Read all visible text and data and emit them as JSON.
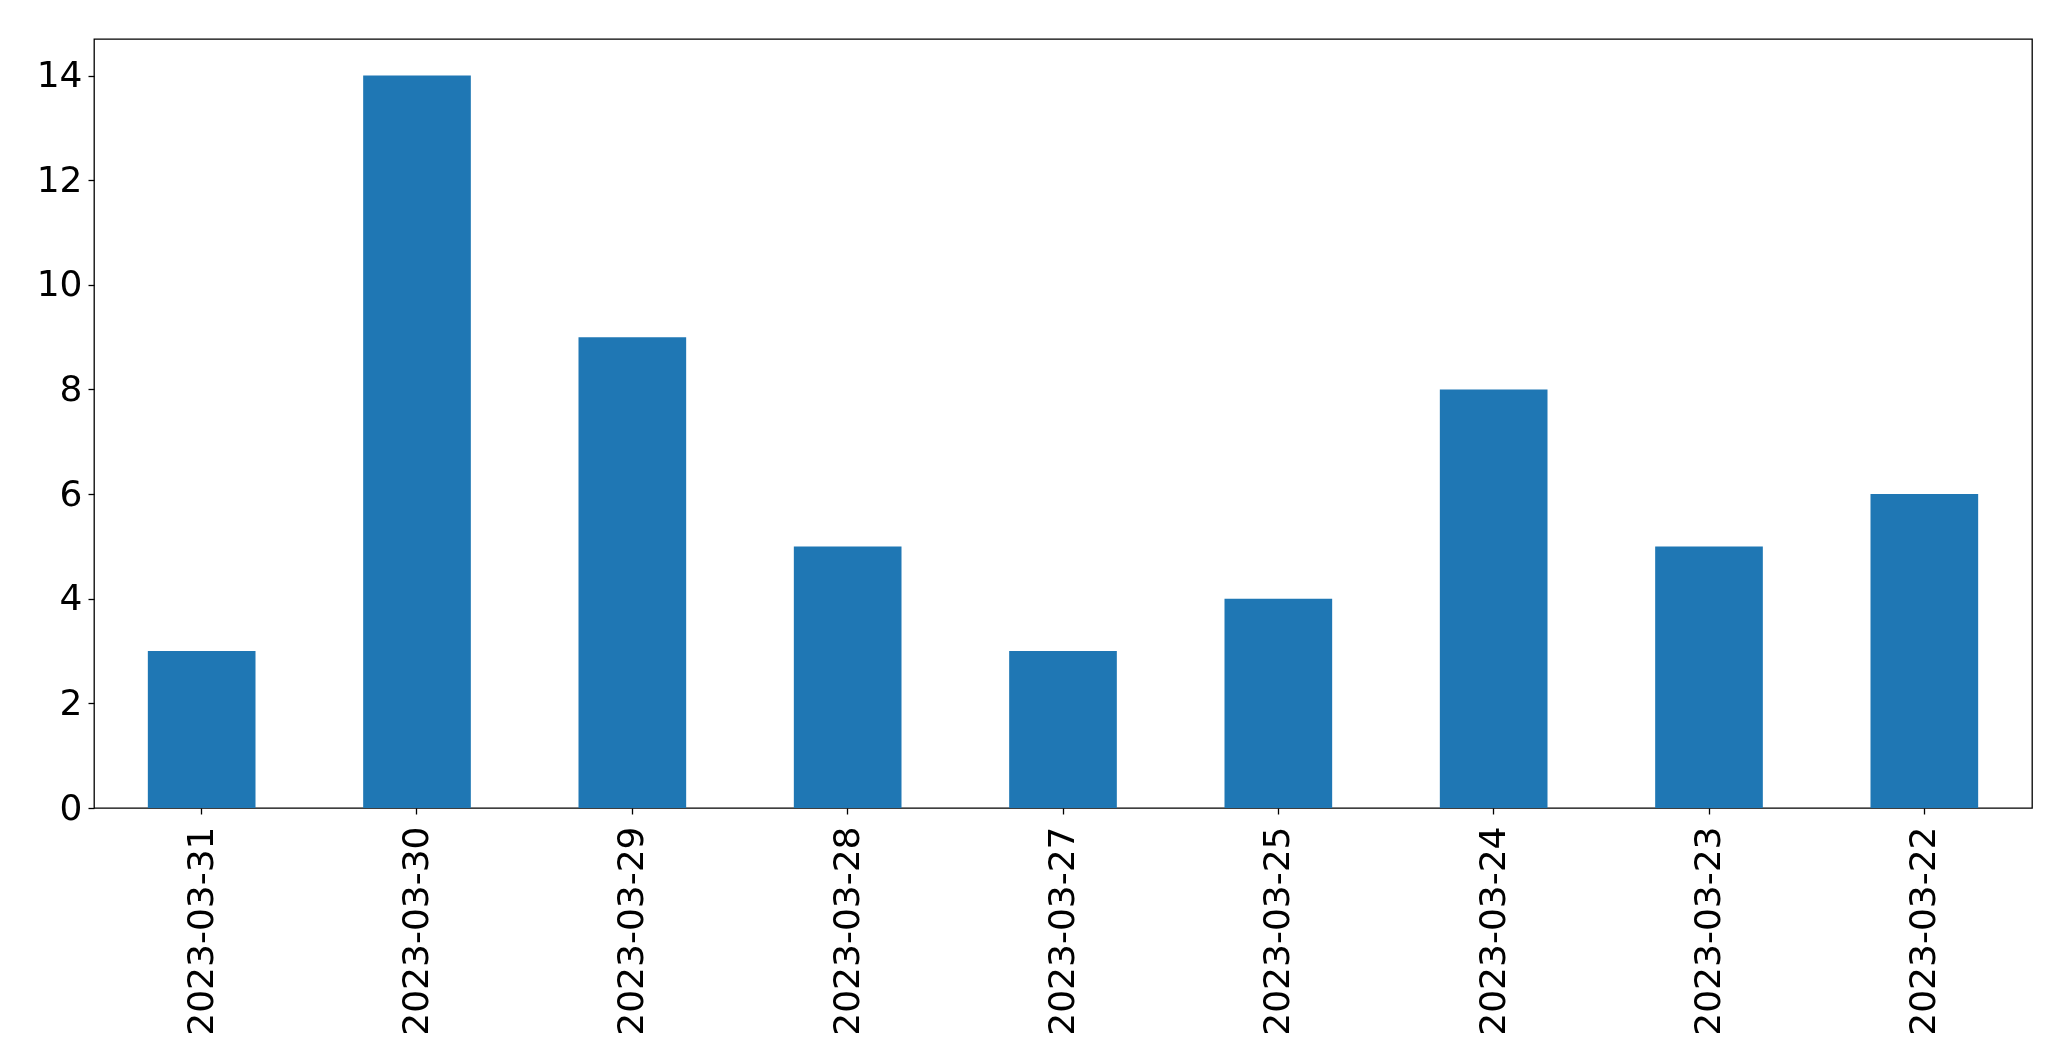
{
  "chart_data": {
    "type": "bar",
    "categories": [
      "2023-03-31",
      "2023-03-30",
      "2023-03-29",
      "2023-03-28",
      "2023-03-27",
      "2023-03-25",
      "2023-03-24",
      "2023-03-23",
      "2023-03-22"
    ],
    "values": [
      3,
      14,
      9,
      5,
      3,
      4,
      8,
      5,
      6
    ],
    "color": "#1f77b4",
    "ylim": [
      0,
      14.7
    ],
    "yticks": [
      0,
      2,
      4,
      6,
      8,
      10,
      12,
      14
    ]
  }
}
